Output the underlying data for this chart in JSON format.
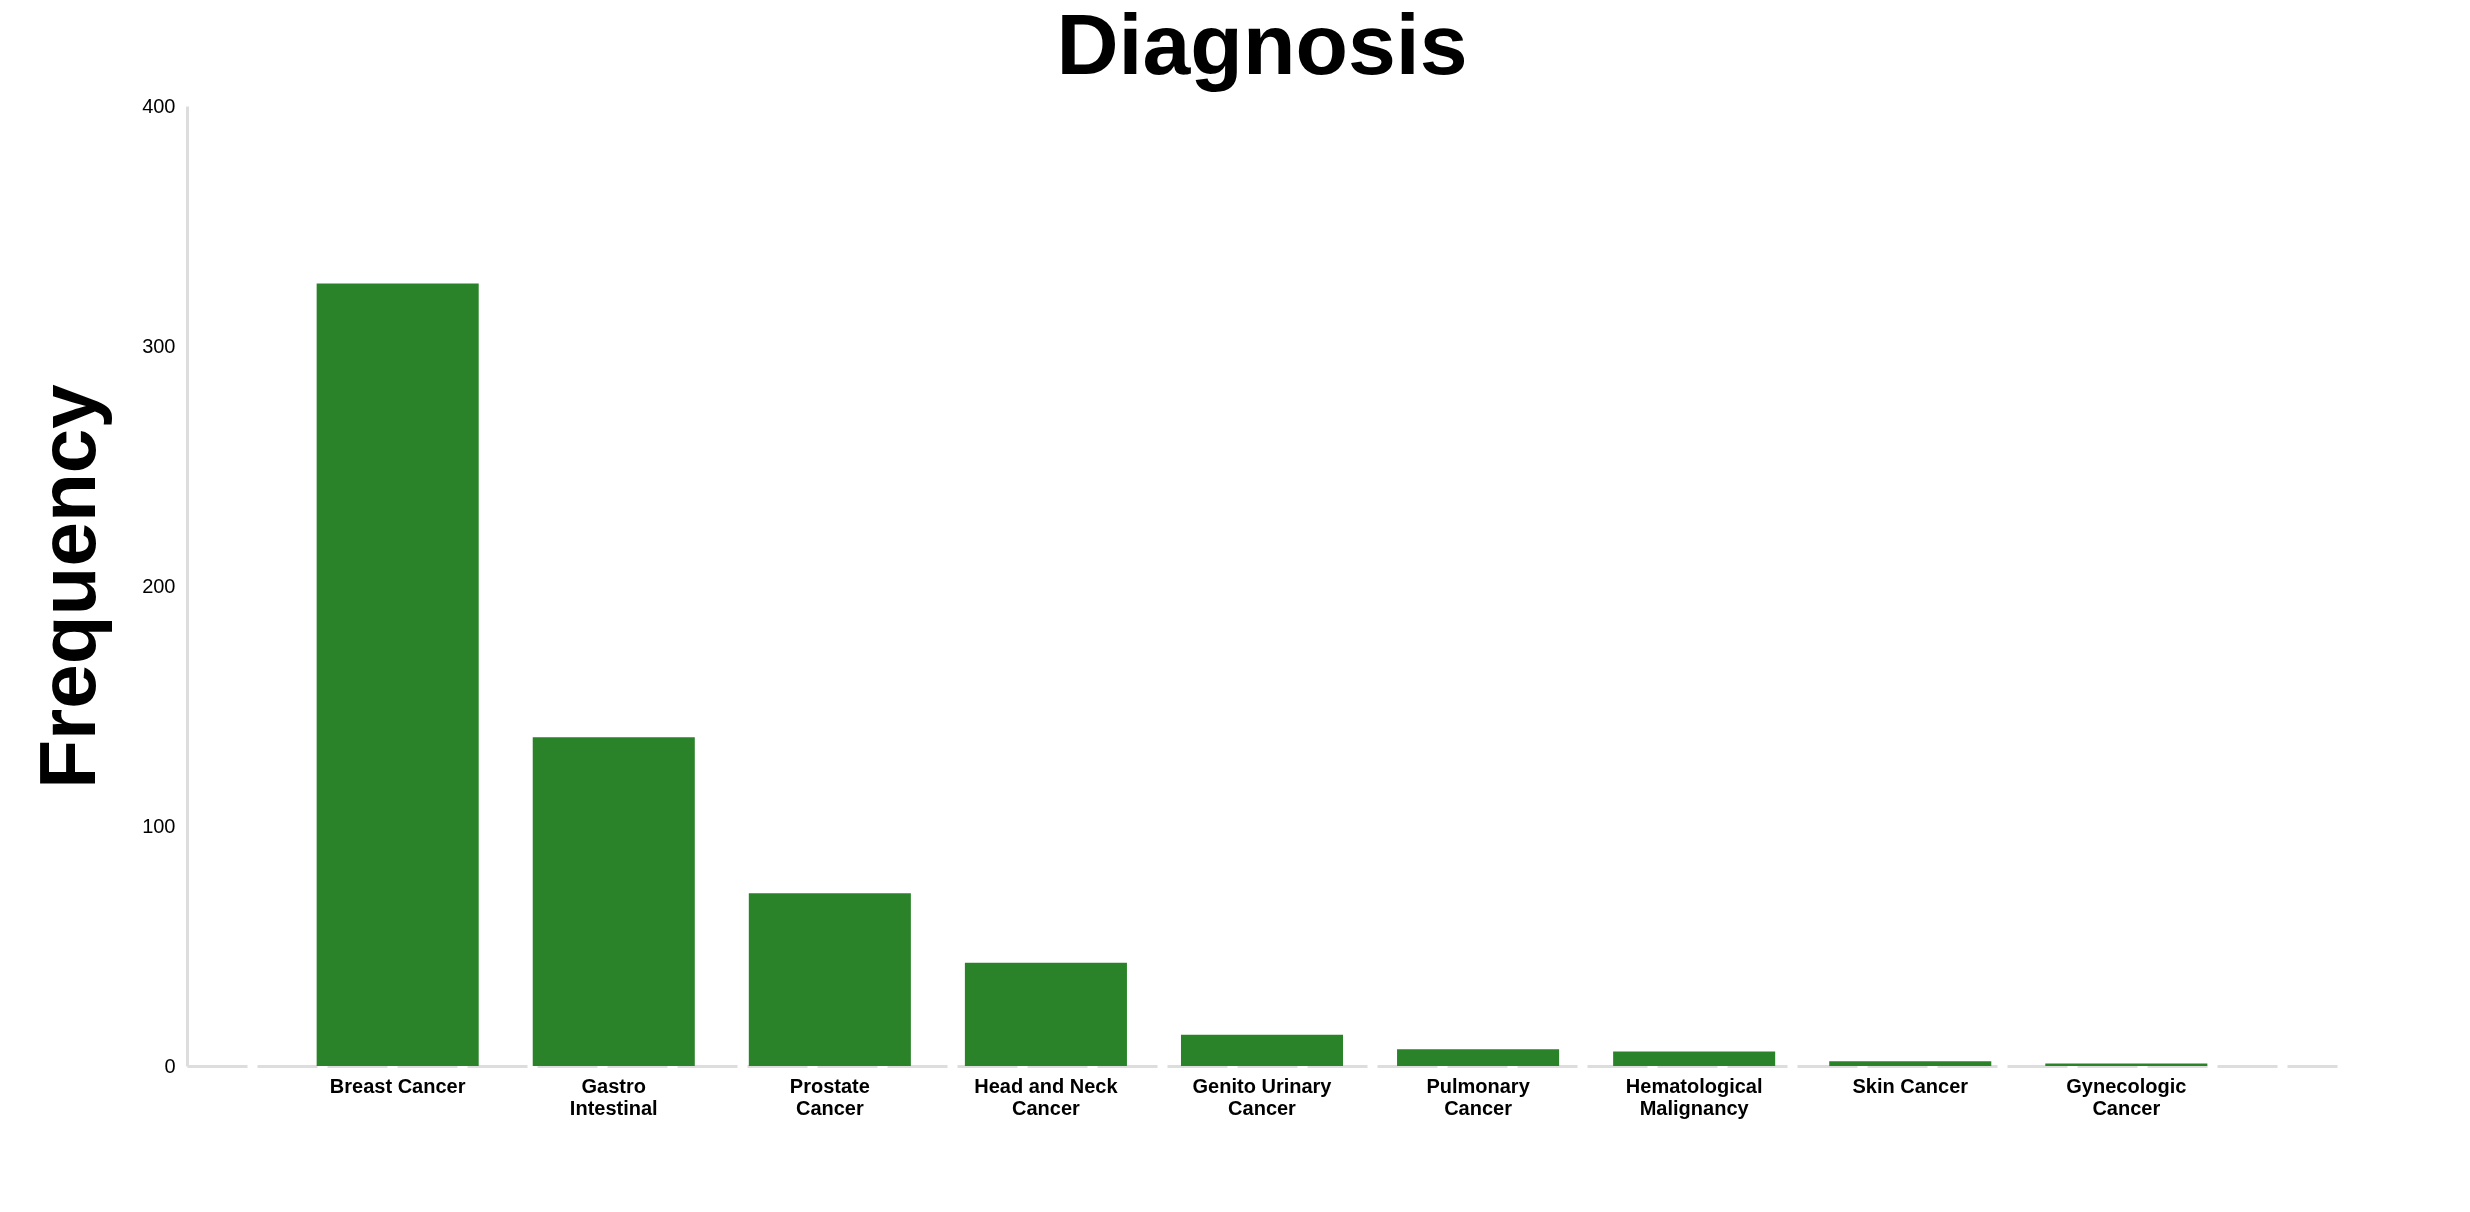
{
  "chart_data": {
    "type": "bar",
    "title": "Diagnosis",
    "ylabel": "Frequency",
    "categories": [
      "Breast Cancer",
      "Gastro Intestinal",
      "Prostate Cancer",
      "Head and Neck Cancer",
      "Genito Urinary Cancer",
      "Pulmonary Cancer",
      "Hematological Malignancy",
      "Skin Cancer",
      "Gynecologic Cancer"
    ],
    "values": [
      326,
      137,
      72,
      43,
      13,
      7,
      6,
      2,
      1
    ],
    "color": "#2a8329",
    "ylim": [
      0,
      400
    ],
    "yticks": [
      0,
      100,
      200,
      300,
      400
    ],
    "grid": false
  }
}
